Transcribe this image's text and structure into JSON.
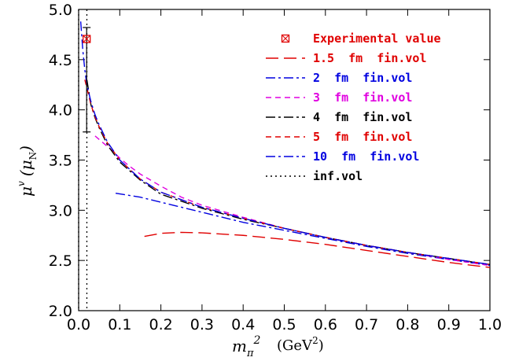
{
  "chart_data": {
    "type": "line",
    "xlabel_symbol": "m",
    "xlabel_sub": "π",
    "xlabel_sup": "2",
    "xlabel_unit": "(GeV",
    "xlabel_unit_sup": "2",
    "xlabel_unit_close": ")",
    "ylabel_symbol": "μ",
    "ylabel_sup": "v",
    "ylabel_unit_open": "(μ",
    "ylabel_unit_sub": "N",
    "ylabel_unit_close": ")",
    "xlim": [
      0.0,
      1.0
    ],
    "ylim": [
      2.0,
      5.0
    ],
    "xticks": [
      "0.0",
      "0.1",
      "0.2",
      "0.3",
      "0.4",
      "0.5",
      "0.6",
      "0.7",
      "0.8",
      "0.9",
      "1.0"
    ],
    "yticks": [
      "2.0",
      "2.5",
      "3.0",
      "3.5",
      "4.0",
      "4.5",
      "5.0"
    ],
    "experimental": {
      "label": "Experimental value",
      "x": 0.0195,
      "y": 4.706,
      "color": "#e00000"
    },
    "error_bar": {
      "x": 0.0195,
      "y": 4.3,
      "ylow": 3.78,
      "yhigh": 4.82
    },
    "series": [
      {
        "name": "1.5  fm  fin.vol",
        "color": "#e00000",
        "dash": "long",
        "x": [
          0.16,
          0.2,
          0.25,
          0.3,
          0.4,
          0.5,
          0.6,
          0.7,
          0.8,
          0.9,
          1.0
        ],
        "y": [
          2.74,
          2.77,
          2.78,
          2.775,
          2.75,
          2.71,
          2.66,
          2.6,
          2.54,
          2.48,
          2.43
        ]
      },
      {
        "name": "2  fm  fin.vol",
        "color": "#0000e0",
        "dash": "dashdot",
        "x": [
          0.09,
          0.15,
          0.2,
          0.3,
          0.4,
          0.5,
          0.6,
          0.7,
          0.8,
          0.9,
          1.0
        ],
        "y": [
          3.17,
          3.13,
          3.08,
          2.98,
          2.88,
          2.8,
          2.72,
          2.64,
          2.57,
          2.51,
          2.45
        ]
      },
      {
        "name": "3  fm  fin.vol",
        "color": "#e000e0",
        "dash": "short",
        "x": [
          0.04,
          0.06,
          0.08,
          0.1,
          0.12,
          0.15,
          0.2,
          0.25,
          0.3,
          0.4,
          0.5,
          0.6,
          0.7,
          0.8,
          0.9,
          1.0
        ],
        "y": [
          3.74,
          3.67,
          3.6,
          3.52,
          3.45,
          3.36,
          3.24,
          3.13,
          3.05,
          2.93,
          2.82,
          2.73,
          2.65,
          2.58,
          2.51,
          2.45
        ]
      },
      {
        "name": "4  fm  fin.vol",
        "color": "#000000",
        "dash": "dashdot",
        "x": [
          0.02,
          0.03,
          0.04,
          0.05,
          0.07,
          0.1,
          0.15,
          0.2,
          0.3,
          0.4,
          0.5,
          0.6,
          0.7,
          0.8,
          0.9,
          1.0
        ],
        "y": [
          4.3,
          4.05,
          3.92,
          3.82,
          3.65,
          3.48,
          3.3,
          3.16,
          3.02,
          2.91,
          2.82,
          2.73,
          2.65,
          2.58,
          2.52,
          2.46
        ]
      },
      {
        "name": "5  fm  fin.vol",
        "color": "#e00000",
        "dash": "short",
        "x": [
          0.015,
          0.02,
          0.03,
          0.04,
          0.05,
          0.07,
          0.1,
          0.15,
          0.2,
          0.3,
          0.4,
          0.5,
          0.6,
          0.7,
          0.8,
          0.9,
          1.0
        ],
        "y": [
          4.3,
          4.22,
          4.05,
          3.93,
          3.83,
          3.67,
          3.5,
          3.31,
          3.18,
          3.03,
          2.92,
          2.82,
          2.73,
          2.65,
          2.58,
          2.52,
          2.46
        ]
      },
      {
        "name": "10  fm  fin.vol",
        "color": "#0000e0",
        "dash": "dashdot",
        "x": [
          0.005,
          0.01,
          0.015,
          0.02,
          0.03,
          0.04,
          0.05,
          0.07,
          0.1,
          0.15,
          0.2,
          0.3,
          0.4,
          0.5,
          0.6,
          0.7,
          0.8,
          0.9,
          1.0
        ],
        "y": [
          4.88,
          4.6,
          4.4,
          4.25,
          4.08,
          3.95,
          3.85,
          3.68,
          3.5,
          3.31,
          3.18,
          3.03,
          2.92,
          2.82,
          2.73,
          2.65,
          2.58,
          2.52,
          2.46
        ]
      },
      {
        "name": "inf.vol",
        "color": "#000000",
        "dash": "dotted",
        "x": [
          0.0,
          0.0,
          0.02,
          0.02
        ],
        "y": [
          2.0,
          5.0,
          5.0,
          2.0
        ],
        "vertical_lines": [
          0.0,
          0.02
        ]
      }
    ],
    "grid": false,
    "legend_position": "top-right"
  }
}
